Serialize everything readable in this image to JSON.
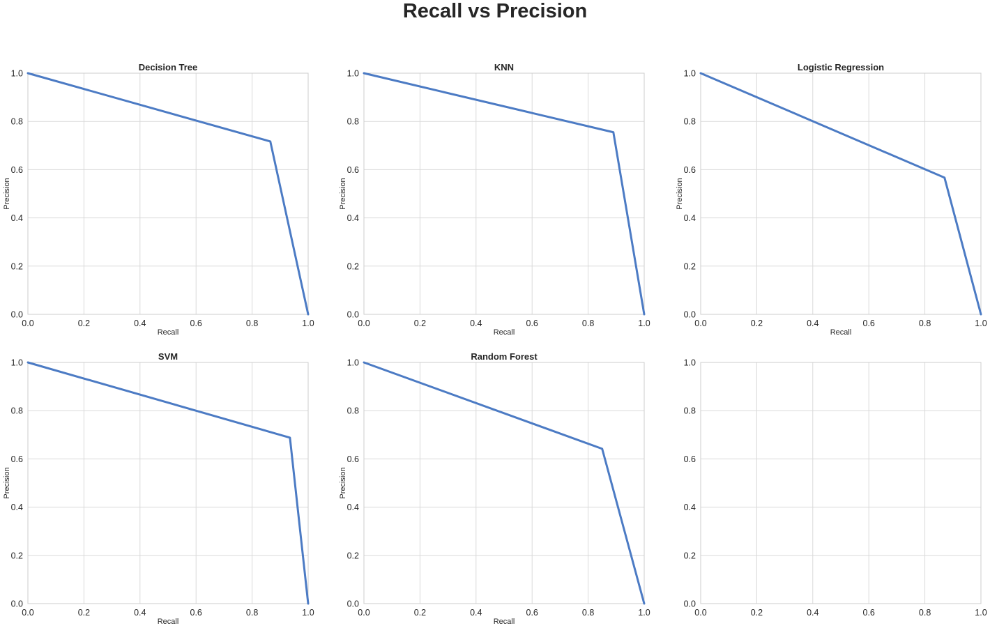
{
  "figure": {
    "suptitle": "Recall vs Precision"
  },
  "colors": {
    "line": "#4c7bc4",
    "grid": "#d9d9d9",
    "spine": "#cccccc",
    "text": "#262626"
  },
  "chart_data": [
    {
      "type": "line",
      "title": "Decision Tree",
      "xlabel": "Recall",
      "ylabel": "Precision",
      "xlim": [
        0,
        1
      ],
      "ylim": [
        0,
        1
      ],
      "grid": true,
      "xticks": [
        "0.0",
        "0.2",
        "0.4",
        "0.6",
        "0.8",
        "1.0"
      ],
      "yticks": [
        "0.0",
        "0.2",
        "0.4",
        "0.6",
        "0.8",
        "1.0"
      ],
      "series": [
        {
          "x": [
            0.0,
            0.865,
            1.0
          ],
          "y": [
            1.0,
            0.717,
            0.0
          ]
        }
      ]
    },
    {
      "type": "line",
      "title": "KNN",
      "xlabel": "Recall",
      "ylabel": "Precision",
      "xlim": [
        0,
        1
      ],
      "ylim": [
        0,
        1
      ],
      "grid": true,
      "xticks": [
        "0.0",
        "0.2",
        "0.4",
        "0.6",
        "0.8",
        "1.0"
      ],
      "yticks": [
        "0.0",
        "0.2",
        "0.4",
        "0.6",
        "0.8",
        "1.0"
      ],
      "series": [
        {
          "x": [
            0.0,
            0.89,
            1.0
          ],
          "y": [
            1.0,
            0.755,
            0.0
          ]
        }
      ]
    },
    {
      "type": "line",
      "title": "Logistic Regression",
      "xlabel": "Recall",
      "ylabel": "Precision",
      "xlim": [
        0,
        1
      ],
      "ylim": [
        0,
        1
      ],
      "grid": true,
      "xticks": [
        "0.0",
        "0.2",
        "0.4",
        "0.6",
        "0.8",
        "1.0"
      ],
      "yticks": [
        "0.0",
        "0.2",
        "0.4",
        "0.6",
        "0.8",
        "1.0"
      ],
      "series": [
        {
          "x": [
            0.0,
            0.87,
            1.0
          ],
          "y": [
            1.0,
            0.567,
            0.0
          ]
        }
      ]
    },
    {
      "type": "line",
      "title": "SVM",
      "xlabel": "Recall",
      "ylabel": "Precision",
      "xlim": [
        0,
        1
      ],
      "ylim": [
        0,
        1
      ],
      "grid": true,
      "xticks": [
        "0.0",
        "0.2",
        "0.4",
        "0.6",
        "0.8",
        "1.0"
      ],
      "yticks": [
        "0.0",
        "0.2",
        "0.4",
        "0.6",
        "0.8",
        "1.0"
      ],
      "series": [
        {
          "x": [
            0.0,
            0.935,
            1.0
          ],
          "y": [
            1.0,
            0.688,
            0.0
          ]
        }
      ]
    },
    {
      "type": "line",
      "title": "Random Forest",
      "xlabel": "Recall",
      "ylabel": "Precision",
      "xlim": [
        0,
        1
      ],
      "ylim": [
        0,
        1
      ],
      "grid": true,
      "xticks": [
        "0.0",
        "0.2",
        "0.4",
        "0.6",
        "0.8",
        "1.0"
      ],
      "yticks": [
        "0.0",
        "0.2",
        "0.4",
        "0.6",
        "0.8",
        "1.0"
      ],
      "series": [
        {
          "x": [
            0.0,
            0.85,
            1.0
          ],
          "y": [
            1.0,
            0.642,
            0.0
          ]
        }
      ]
    },
    {
      "type": "line",
      "title": "",
      "xlabel": "",
      "ylabel": "",
      "xlim": [
        0,
        1
      ],
      "ylim": [
        0,
        1
      ],
      "grid": true,
      "xticks": [
        "0.0",
        "0.2",
        "0.4",
        "0.6",
        "0.8",
        "1.0"
      ],
      "yticks": [
        "0.0",
        "0.2",
        "0.4",
        "0.6",
        "0.8",
        "1.0"
      ],
      "series": []
    }
  ]
}
